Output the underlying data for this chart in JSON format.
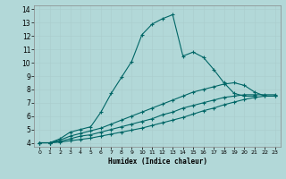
{
  "xlabel": "Humidex (Indice chaleur)",
  "background_color": "#b2d8d8",
  "grid_color": "#aacccc",
  "line_color": "#006666",
  "xlim": [
    -0.5,
    23.5
  ],
  "ylim": [
    3.7,
    14.3
  ],
  "xticks": [
    0,
    1,
    2,
    3,
    4,
    5,
    6,
    7,
    8,
    9,
    10,
    11,
    12,
    13,
    14,
    15,
    16,
    17,
    18,
    19,
    20,
    21,
    22,
    23
  ],
  "yticks": [
    4,
    5,
    6,
    7,
    8,
    9,
    10,
    11,
    12,
    13,
    14
  ],
  "series": [
    {
      "x": [
        0,
        1,
        2,
        3,
        4,
        5,
        6,
        7,
        8,
        9,
        10,
        11,
        12,
        13,
        14,
        15,
        16,
        17,
        18,
        19,
        20,
        21
      ],
      "y": [
        4,
        4,
        4.3,
        4.8,
        5.0,
        5.2,
        6.3,
        7.7,
        8.9,
        10.1,
        12.1,
        12.9,
        13.3,
        13.6,
        10.5,
        10.8,
        10.4,
        9.5,
        8.5,
        7.7,
        7.5,
        7.5
      ]
    },
    {
      "x": [
        0,
        1,
        2,
        3,
        4,
        5,
        6,
        7,
        8,
        9,
        10,
        11,
        12,
        13,
        14,
        15,
        16,
        17,
        18,
        19,
        20,
        21,
        22,
        23
      ],
      "y": [
        4,
        4,
        4.2,
        4.5,
        4.7,
        4.9,
        5.1,
        5.4,
        5.7,
        6.0,
        6.3,
        6.6,
        6.9,
        7.2,
        7.5,
        7.8,
        8.0,
        8.2,
        8.4,
        8.5,
        8.3,
        7.8,
        7.5,
        7.5
      ]
    },
    {
      "x": [
        0,
        1,
        2,
        3,
        4,
        5,
        6,
        7,
        8,
        9,
        10,
        11,
        12,
        13,
        14,
        15,
        16,
        17,
        18,
        19,
        20,
        21,
        22,
        23
      ],
      "y": [
        4,
        4,
        4.1,
        4.3,
        4.5,
        4.6,
        4.8,
        5.0,
        5.2,
        5.4,
        5.6,
        5.8,
        6.1,
        6.3,
        6.6,
        6.8,
        7.0,
        7.2,
        7.4,
        7.5,
        7.6,
        7.6,
        7.6,
        7.6
      ]
    },
    {
      "x": [
        0,
        1,
        2,
        3,
        4,
        5,
        6,
        7,
        8,
        9,
        10,
        11,
        12,
        13,
        14,
        15,
        16,
        17,
        18,
        19,
        20,
        21,
        22,
        23
      ],
      "y": [
        4,
        4,
        4.05,
        4.15,
        4.25,
        4.35,
        4.5,
        4.65,
        4.8,
        4.95,
        5.1,
        5.3,
        5.5,
        5.7,
        5.9,
        6.15,
        6.4,
        6.6,
        6.85,
        7.05,
        7.25,
        7.4,
        7.5,
        7.5
      ]
    }
  ]
}
